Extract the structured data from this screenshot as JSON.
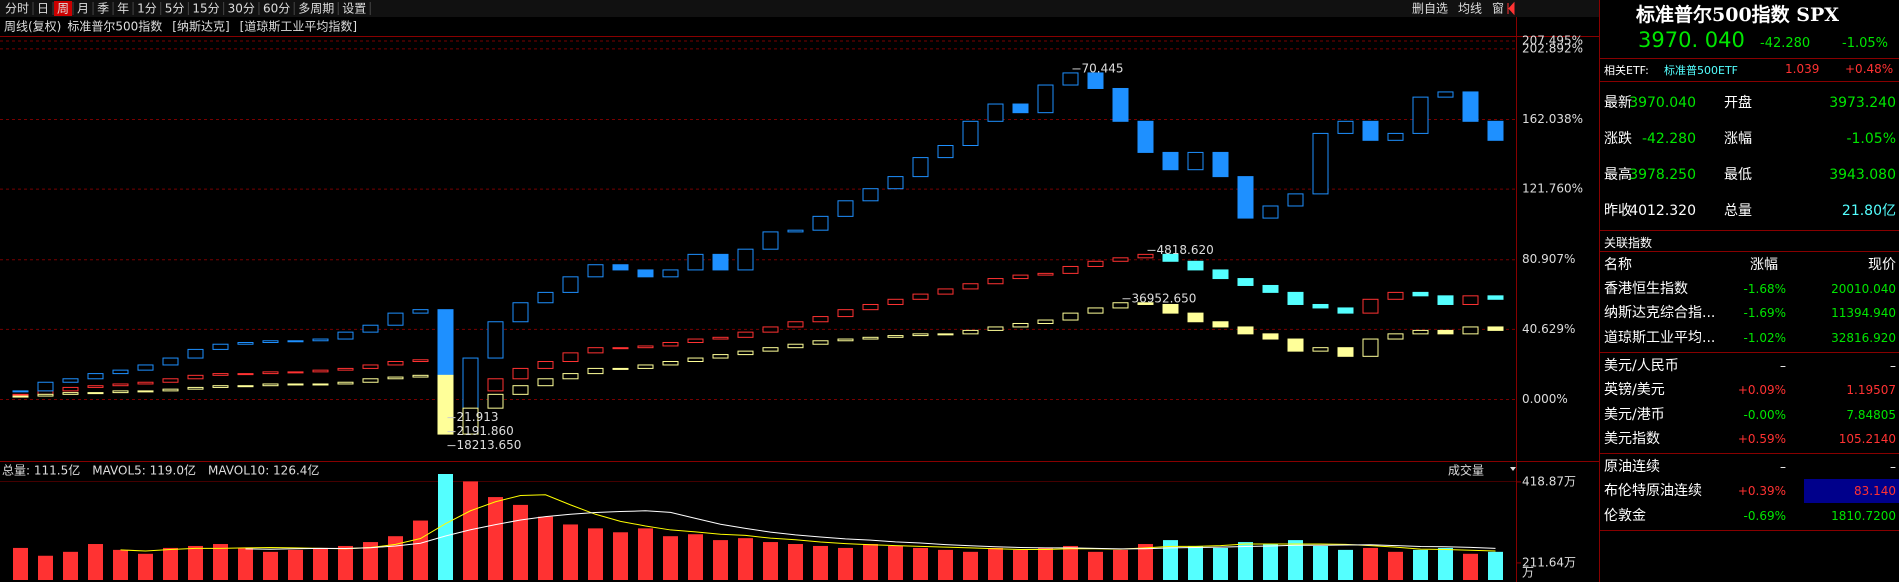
{
  "toolbar": {
    "periods": [
      "分时",
      "日",
      "周",
      "月",
      "季",
      "年",
      "1分",
      "5分",
      "15分",
      "30分",
      "60分",
      "多周期",
      "设置"
    ],
    "active": "周",
    "tools": [
      "删自选",
      "均线",
      "窗"
    ]
  },
  "chart_data": [
    {
      "type": "candlestick",
      "mode": "周线(复权)",
      "ylim": [
        -35,
        215
      ],
      "yticks": [
        {
          "value": 207.495,
          "label": "207.495%"
        },
        {
          "value": 202.892,
          "label": "202.892%"
        },
        {
          "value": 162.038,
          "label": "162.038%"
        },
        {
          "value": 121.76,
          "label": "121.760%"
        },
        {
          "value": 80.907,
          "label": "80.907%"
        },
        {
          "value": 40.629,
          "label": "40.629%"
        },
        {
          "value": 0,
          "label": "0.000%"
        }
      ],
      "grid": true,
      "series": [
        {
          "name": "标准普尔500指数",
          "color": "#ff3232",
          "down_color": "#54ffff",
          "high_label": "4818.620",
          "low_label": "2191.860",
          "values": [
            3,
            5,
            7,
            8,
            9,
            10,
            12,
            14,
            15,
            15,
            16,
            16,
            17,
            18,
            20,
            22,
            23,
            -10,
            5,
            12,
            18,
            22,
            27,
            30,
            30,
            31,
            33,
            35,
            36,
            39,
            42,
            45,
            48,
            52,
            55,
            58,
            61,
            64,
            67,
            70,
            72,
            73,
            77,
            80,
            82,
            84,
            80,
            75,
            70,
            66,
            62,
            55,
            53,
            50,
            58,
            62,
            60,
            55,
            60,
            58
          ]
        },
        {
          "name": "[纳斯达克]",
          "color": "#1e90ff",
          "down_color": "#1e90ff",
          "high_label": "70.445",
          "low_label": "21.913",
          "values": [
            5,
            10,
            12,
            15,
            17,
            20,
            24,
            29,
            32,
            33,
            34,
            34,
            35,
            39,
            43,
            50,
            52,
            -7,
            24,
            45,
            56,
            62,
            71,
            78,
            75,
            71,
            75,
            84,
            75,
            87,
            97,
            98,
            106,
            115,
            122,
            129,
            140,
            147,
            161,
            171,
            166,
            182,
            189,
            180,
            161,
            143,
            133,
            143,
            129,
            105,
            112,
            119,
            154,
            161,
            150,
            154,
            175,
            178,
            161,
            150
          ]
        },
        {
          "name": "[道琼斯工业平均指数]",
          "color": "#ffff99",
          "down_color": "#ffff99",
          "high_label": "36952.650",
          "low_label": "18213.650",
          "values": [
            2,
            3,
            4,
            4,
            5,
            5,
            6,
            7,
            8,
            8,
            9,
            9,
            9,
            10,
            12,
            13,
            14,
            -20,
            -5,
            3,
            8,
            12,
            15,
            18,
            18,
            20,
            22,
            24,
            26,
            28,
            30,
            32,
            34,
            35,
            36,
            37,
            38,
            38,
            40,
            42,
            44,
            46,
            50,
            53,
            56,
            55,
            50,
            45,
            42,
            38,
            35,
            28,
            30,
            25,
            35,
            38,
            40,
            38,
            42,
            40
          ]
        }
      ]
    },
    {
      "type": "bar",
      "title": "成交量",
      "ylim": [
        168,
        439
      ],
      "yticks": [
        {
          "value": 418.87,
          "label": "418.87万"
        },
        {
          "value": 211.64,
          "label": "211.64万"
        }
      ],
      "unit": "万",
      "up_color": "#ff3232",
      "down_color": "#54ffff",
      "indicators": [
        {
          "label": "总量: 111.5亿",
          "color": "#ff3232"
        },
        {
          "label": "MAVOL5: 119.0亿",
          "color": "#ffff00",
          "period": 5
        },
        {
          "label": "MAVOL10: 126.4亿",
          "color": "#ffffff",
          "period": 10
        }
      ],
      "values": [
        250,
        230,
        240,
        260,
        245,
        235,
        250,
        255,
        260,
        250,
        240,
        245,
        250,
        255,
        265,
        280,
        320,
        440,
        420,
        380,
        360,
        330,
        310,
        300,
        290,
        300,
        280,
        285,
        270,
        275,
        265,
        260,
        255,
        250,
        260,
        255,
        250,
        245,
        240,
        250,
        245,
        250,
        255,
        240,
        245,
        260,
        270,
        255,
        250,
        265,
        260,
        270,
        255,
        245,
        250,
        240,
        245,
        250,
        235,
        240
      ]
    }
  ],
  "quote": {
    "title": "标准普尔500指数 SPX",
    "price": "3970. 040",
    "change": "-42.280",
    "change_pct": "-1.05%",
    "etf": [
      "相关ETF:",
      "标准普500ETF",
      "1.039",
      "+0.48%"
    ],
    "fields": [
      [
        "最新",
        "3970.040",
        "开盘",
        "3973.240"
      ],
      [
        "涨跌",
        "-42.280",
        "涨幅",
        "-1.05%"
      ],
      [
        "最高",
        "3978.250",
        "最低",
        "3943.080"
      ],
      [
        "昨收",
        "4012.320",
        "总量",
        "21.80亿"
      ]
    ]
  },
  "related": {
    "title": "关联指数",
    "columns": [
      "名称",
      "涨幅",
      "现价"
    ],
    "groups": [
      [
        [
          "香港恒生指数",
          "-1.68%",
          "20010.040"
        ],
        [
          "纳斯达克综合指...",
          "-1.69%",
          "11394.940"
        ],
        [
          "道琼斯工业平均...",
          "-1.02%",
          "32816.920"
        ]
      ],
      [
        [
          "美元/人民币",
          "–",
          "–"
        ],
        [
          "英镑/美元",
          "+0.09%",
          "1.19507"
        ],
        [
          "美元/港币",
          "-0.00%",
          "7.84805"
        ],
        [
          "美元指数",
          "+0.59%",
          "105.2140"
        ]
      ],
      [
        [
          "原油连续",
          "–",
          "–"
        ],
        [
          "布伦特原油连续",
          "+0.39%",
          "83.140"
        ],
        [
          "伦敦金",
          "-0.69%",
          "1810.7200"
        ]
      ]
    ]
  }
}
